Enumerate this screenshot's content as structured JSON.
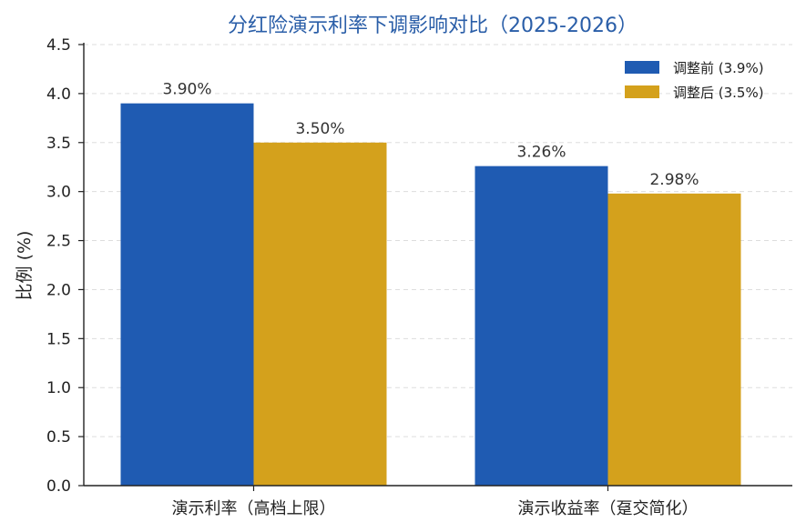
{
  "chart_data": {
    "type": "bar",
    "title": "分红险演示利率下调影响对比（2025-2026）",
    "xlabel": "",
    "ylabel": "比例 (%)",
    "categories": [
      "演示利率（高档上限）",
      "演示收益率（趸交简化）"
    ],
    "series": [
      {
        "name": "调整前 (3.9%)",
        "values": [
          3.9,
          3.26
        ],
        "labels": [
          "3.90%",
          "3.26%"
        ],
        "color": "#1f5bb2"
      },
      {
        "name": "调整后 (3.5%)",
        "values": [
          3.5,
          2.98
        ],
        "labels": [
          "3.50%",
          "2.98%"
        ],
        "color": "#d4a11c"
      }
    ],
    "ylim": [
      0,
      4.5
    ],
    "yticks": [
      "0.0",
      "0.5",
      "1.0",
      "1.5",
      "2.0",
      "2.5",
      "3.0",
      "3.5",
      "4.0",
      "4.5"
    ],
    "grid": "horizontal-dashed",
    "legend_position": "top-right"
  }
}
